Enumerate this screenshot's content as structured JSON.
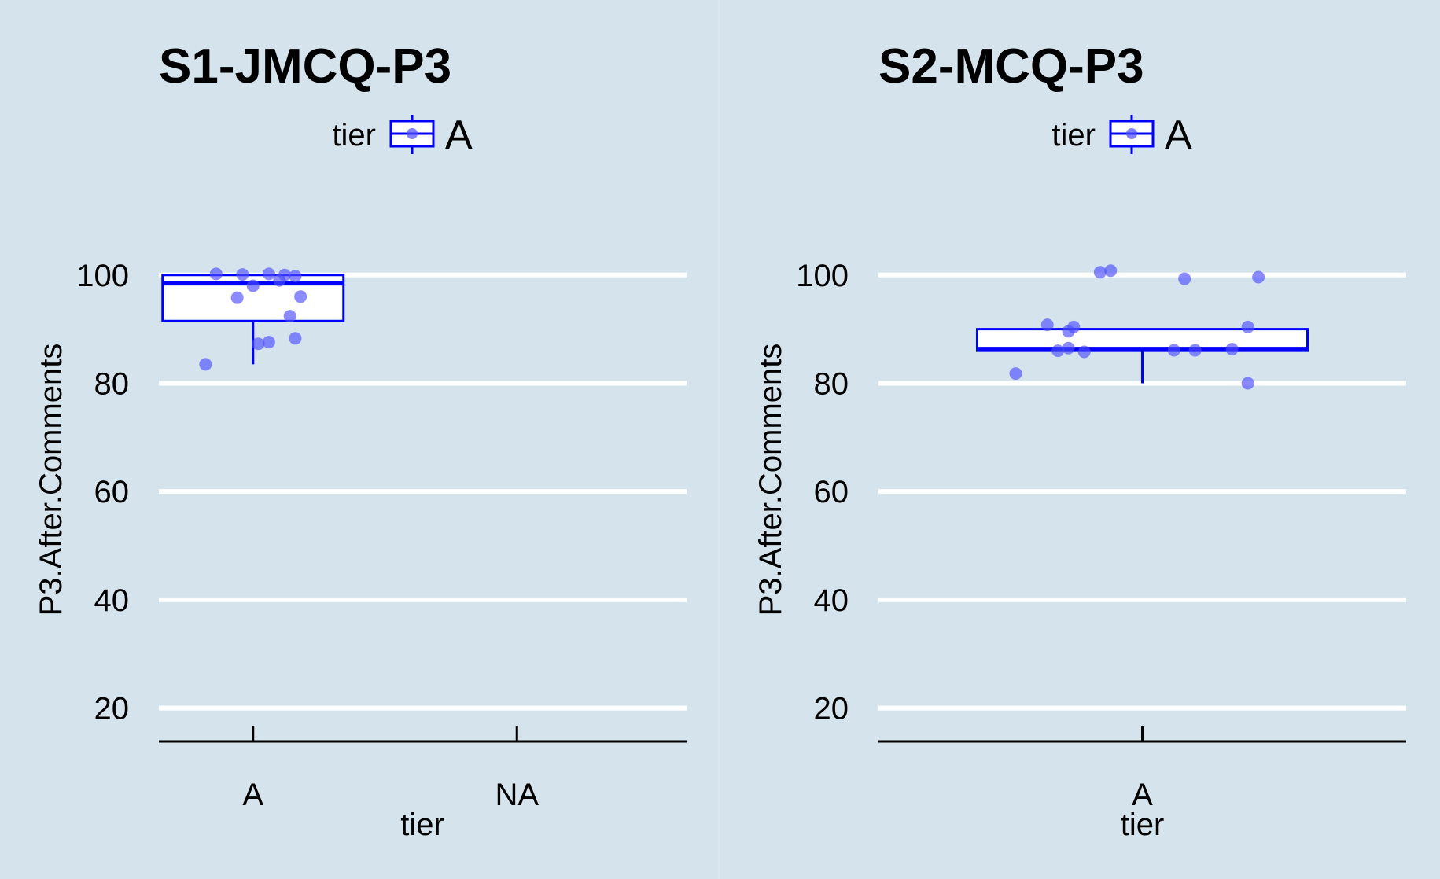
{
  "colors": {
    "background": "#d5e4ec",
    "grid": "#ffffff",
    "accent": "#0000ff",
    "point_fill": "#4d4dff",
    "axis": "#000000"
  },
  "chart_data": [
    {
      "type": "box",
      "title": "S1-JMCQ-P3",
      "legend": {
        "title": "tier",
        "label": "A",
        "position": "top"
      },
      "xlabel": "tier",
      "ylabel": "P3.After.Comments",
      "categories": [
        "A",
        "NA"
      ],
      "ylim": [
        15,
        106.5
      ],
      "yticks": [
        20,
        40,
        60,
        80,
        100
      ],
      "grid": true,
      "box": {
        "category": "A",
        "lower_whisker": 83.5,
        "q1": 91.5,
        "median": 98.5,
        "q3": 100,
        "upper_whisker": 100
      },
      "points": [
        {
          "category": "A",
          "jitter": -0.07,
          "y": 100.2
        },
        {
          "category": "A",
          "jitter": -0.02,
          "y": 100.1
        },
        {
          "category": "A",
          "jitter": 0.03,
          "y": 100.2
        },
        {
          "category": "A",
          "jitter": 0.06,
          "y": 100.0
        },
        {
          "category": "A",
          "jitter": 0.08,
          "y": 99.8
        },
        {
          "category": "A",
          "jitter": 0.05,
          "y": 99.0
        },
        {
          "category": "A",
          "jitter": 0.0,
          "y": 98.0
        },
        {
          "category": "A",
          "jitter": -0.03,
          "y": 95.8
        },
        {
          "category": "A",
          "jitter": 0.09,
          "y": 96.0
        },
        {
          "category": "A",
          "jitter": 0.07,
          "y": 92.4
        },
        {
          "category": "A",
          "jitter": 0.08,
          "y": 88.3
        },
        {
          "category": "A",
          "jitter": 0.03,
          "y": 87.6
        },
        {
          "category": "A",
          "jitter": 0.01,
          "y": 87.3
        },
        {
          "category": "A",
          "jitter": -0.09,
          "y": 83.5
        }
      ]
    },
    {
      "type": "box",
      "title": "S2-MCQ-P3",
      "legend": {
        "title": "tier",
        "label": "A",
        "position": "top"
      },
      "xlabel": "tier",
      "ylabel": "P3.After.Comments",
      "categories": [
        "A"
      ],
      "ylim": [
        15,
        106.5
      ],
      "yticks": [
        20,
        40,
        60,
        80,
        100
      ],
      "grid": true,
      "box": {
        "category": "A",
        "lower_whisker": 80,
        "q1": 86,
        "median": 86.3,
        "q3": 90,
        "upper_whisker": 90
      },
      "points": [
        {
          "category": "A",
          "jitter": -0.04,
          "y": 100.5
        },
        {
          "category": "A",
          "jitter": -0.03,
          "y": 100.8
        },
        {
          "category": "A",
          "jitter": 0.04,
          "y": 99.3
        },
        {
          "category": "A",
          "jitter": 0.11,
          "y": 99.6
        },
        {
          "category": "A",
          "jitter": -0.09,
          "y": 90.8
        },
        {
          "category": "A",
          "jitter": -0.065,
          "y": 90.4
        },
        {
          "category": "A",
          "jitter": -0.07,
          "y": 89.6
        },
        {
          "category": "A",
          "jitter": 0.1,
          "y": 90.4
        },
        {
          "category": "A",
          "jitter": -0.07,
          "y": 86.5
        },
        {
          "category": "A",
          "jitter": -0.08,
          "y": 86.0
        },
        {
          "category": "A",
          "jitter": -0.055,
          "y": 85.8
        },
        {
          "category": "A",
          "jitter": 0.03,
          "y": 86.1
        },
        {
          "category": "A",
          "jitter": 0.05,
          "y": 86.1
        },
        {
          "category": "A",
          "jitter": 0.085,
          "y": 86.3
        },
        {
          "category": "A",
          "jitter": -0.12,
          "y": 81.8
        },
        {
          "category": "A",
          "jitter": 0.1,
          "y": 80.0
        }
      ]
    }
  ]
}
